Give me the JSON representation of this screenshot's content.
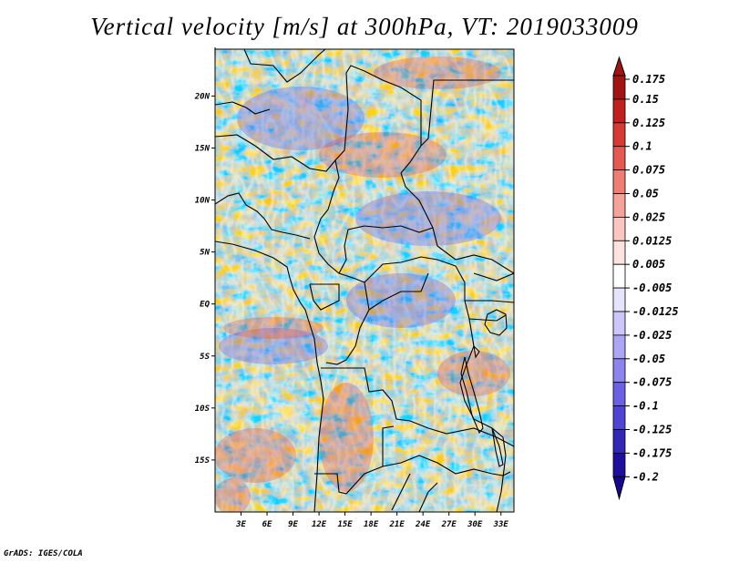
{
  "title": "Vertical velocity [m/s] at 300hPa, VT: 2019033009",
  "credit": "GrADS: IGES/COLA",
  "map": {
    "variable": "Vertical velocity",
    "units": "m/s",
    "level": "300hPa",
    "valid_time": "2019033009",
    "lon_range": [
      0,
      34.5
    ],
    "lat_range": [
      -20,
      24.5
    ],
    "lon_ticks": [
      {
        "value": 3,
        "label": "3E"
      },
      {
        "value": 6,
        "label": "6E"
      },
      {
        "value": 9,
        "label": "9E"
      },
      {
        "value": 12,
        "label": "12E"
      },
      {
        "value": 15,
        "label": "15E"
      },
      {
        "value": 18,
        "label": "18E"
      },
      {
        "value": 21,
        "label": "21E"
      },
      {
        "value": 24,
        "label": "24E"
      },
      {
        "value": 27,
        "label": "27E"
      },
      {
        "value": 30,
        "label": "30E"
      },
      {
        "value": 33,
        "label": "33E"
      }
    ],
    "lat_ticks": [
      {
        "value": 20,
        "label": "20N"
      },
      {
        "value": 15,
        "label": "15N"
      },
      {
        "value": 10,
        "label": "10N"
      },
      {
        "value": 5,
        "label": "5N"
      },
      {
        "value": 0,
        "label": "EQ"
      },
      {
        "value": -5,
        "label": "5S"
      },
      {
        "value": -10,
        "label": "10S"
      },
      {
        "value": -15,
        "label": "15S"
      }
    ]
  },
  "colorbar": {
    "labels": [
      "0.175",
      "0.15",
      "0.125",
      "0.1",
      "0.075",
      "0.05",
      "0.025",
      "0.0125",
      "0.005",
      "-0.005",
      "-0.0125",
      "-0.025",
      "-0.05",
      "-0.075",
      "-0.1",
      "-0.125",
      "-0.175",
      "-0.2"
    ],
    "colors": [
      "#a01414",
      "#c0201e",
      "#d53a35",
      "#e45a53",
      "#ee7d74",
      "#f5a29a",
      "#fac6c0",
      "#fde3df",
      "#ffffff",
      "#e6e4fc",
      "#cbc7fa",
      "#ada6f5",
      "#8d84ee",
      "#6c61e3",
      "#4f45d2",
      "#3327b6",
      "#1f0f9c",
      "#17078a"
    ],
    "arrow_top_color": "#a01414",
    "arrow_bottom_color": "#17078a"
  },
  "colors": {
    "land_outline": "#000000",
    "background": "#ffffff"
  }
}
